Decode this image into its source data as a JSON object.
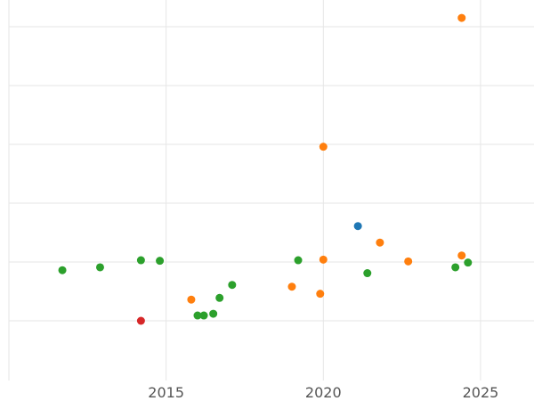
{
  "chart_data": {
    "type": "scatter",
    "title": "",
    "xlabel": "",
    "ylabel": "",
    "xlim": [
      2010,
      2026.7
    ],
    "ylim": [
      -1,
      5.5
    ],
    "x_ticks": [
      2015,
      2020,
      2025
    ],
    "x_tick_labels": [
      "2015",
      "2020",
      "2025"
    ],
    "y_gridlines": [
      0,
      1,
      2,
      3,
      4,
      5
    ],
    "grid": true,
    "legend": "none",
    "colors": {
      "blue": "#1f77b4",
      "orange": "#ff7f0e",
      "green": "#2ca02c",
      "red": "#d62728"
    },
    "points": [
      {
        "x": 2011.7,
        "y": 0.86,
        "color": "#2ca02c"
      },
      {
        "x": 2012.9,
        "y": 0.91,
        "color": "#2ca02c"
      },
      {
        "x": 2014.2,
        "y": 1.03,
        "color": "#2ca02c"
      },
      {
        "x": 2014.8,
        "y": 1.02,
        "color": "#2ca02c"
      },
      {
        "x": 2016.0,
        "y": 0.09,
        "color": "#2ca02c"
      },
      {
        "x": 2016.2,
        "y": 0.09,
        "color": "#2ca02c"
      },
      {
        "x": 2016.5,
        "y": 0.12,
        "color": "#2ca02c"
      },
      {
        "x": 2016.7,
        "y": 0.39,
        "color": "#2ca02c"
      },
      {
        "x": 2017.1,
        "y": 0.61,
        "color": "#2ca02c"
      },
      {
        "x": 2019.2,
        "y": 1.03,
        "color": "#2ca02c"
      },
      {
        "x": 2021.4,
        "y": 0.81,
        "color": "#2ca02c"
      },
      {
        "x": 2024.2,
        "y": 0.91,
        "color": "#2ca02c"
      },
      {
        "x": 2024.6,
        "y": 0.99,
        "color": "#2ca02c"
      },
      {
        "x": 2015.8,
        "y": 0.36,
        "color": "#ff7f0e"
      },
      {
        "x": 2019.0,
        "y": 0.58,
        "color": "#ff7f0e"
      },
      {
        "x": 2019.9,
        "y": 0.46,
        "color": "#ff7f0e"
      },
      {
        "x": 2020.0,
        "y": 1.04,
        "color": "#ff7f0e"
      },
      {
        "x": 2020.0,
        "y": 2.96,
        "color": "#ff7f0e"
      },
      {
        "x": 2021.8,
        "y": 1.33,
        "color": "#ff7f0e"
      },
      {
        "x": 2022.7,
        "y": 1.01,
        "color": "#ff7f0e"
      },
      {
        "x": 2024.4,
        "y": 1.11,
        "color": "#ff7f0e"
      },
      {
        "x": 2024.4,
        "y": 5.15,
        "color": "#ff7f0e"
      },
      {
        "x": 2021.1,
        "y": 1.61,
        "color": "#1f77b4"
      },
      {
        "x": 2014.2,
        "y": 0.0,
        "color": "#d62728"
      }
    ]
  }
}
